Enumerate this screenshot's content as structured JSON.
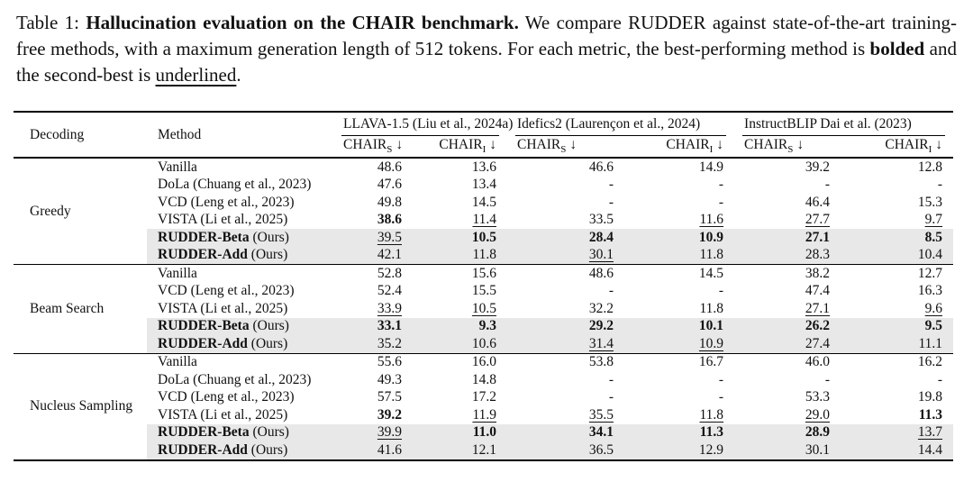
{
  "caption": {
    "label": "Table 1: ",
    "title": "Hallucination evaluation on the CHAIR benchmark.",
    "text_a": "  We compare RUDDER against state-of-the-art training-free methods, with a maximum generation length of 512 tokens. For each metric, the best-performing method is ",
    "bold_word": "bolded",
    "text_b": " and the second-best is ",
    "underline_word": "underlined",
    "text_c": "."
  },
  "table": {
    "highlight_color": "#e8e8e8",
    "header": {
      "decoding": "Decoding",
      "method": "Method",
      "groups": [
        "LLAVA-1.5 (Liu et al., 2024a)",
        "Idefics2 (Laurençon et al., 2024)",
        "InstructBLIP Dai et al. (2023)"
      ],
      "metric": "CHAIR",
      "sub_s": "S",
      "sub_i": "I",
      "arrow": "↓"
    },
    "sections": [
      {
        "decoding": "Greedy",
        "rows": [
          {
            "m": "Vanilla",
            "cells": [
              {
                "v": "48.6"
              },
              {
                "v": "13.6"
              },
              {
                "v": "46.6"
              },
              {
                "v": "14.9"
              },
              {
                "v": "39.2"
              },
              {
                "v": "12.8"
              }
            ]
          },
          {
            "m": "DoLa (Chuang et al., 2023)",
            "cells": [
              {
                "v": "47.6"
              },
              {
                "v": "13.4"
              },
              {
                "v": "-"
              },
              {
                "v": "-"
              },
              {
                "v": "-"
              },
              {
                "v": "-"
              }
            ]
          },
          {
            "m": "VCD (Leng et al., 2023)",
            "cells": [
              {
                "v": "49.8"
              },
              {
                "v": "14.5"
              },
              {
                "v": "-"
              },
              {
                "v": "-"
              },
              {
                "v": "46.4"
              },
              {
                "v": "15.3"
              }
            ]
          },
          {
            "m": "VISTA (Li et al., 2025)",
            "cells": [
              {
                "v": "38.6",
                "b": true
              },
              {
                "v": "11.4",
                "u": true
              },
              {
                "v": "33.5"
              },
              {
                "v": "11.6",
                "u": true
              },
              {
                "v": "27.7",
                "u": true
              },
              {
                "v": "9.7",
                "u": true
              }
            ]
          },
          {
            "mb": "RUDDER-Beta",
            "m": " (Ours)",
            "hl": true,
            "cells": [
              {
                "v": "39.5",
                "u": true
              },
              {
                "v": "10.5",
                "b": true
              },
              {
                "v": "28.4",
                "b": true
              },
              {
                "v": "10.9",
                "b": true
              },
              {
                "v": "27.1",
                "b": true
              },
              {
                "v": "8.5",
                "b": true
              }
            ]
          },
          {
            "mb": "RUDDER-Add",
            "m": " (Ours)",
            "hl": true,
            "cells": [
              {
                "v": "42.1"
              },
              {
                "v": "11.8"
              },
              {
                "v": "30.1",
                "u": true
              },
              {
                "v": "11.8"
              },
              {
                "v": "28.3"
              },
              {
                "v": "10.4"
              }
            ]
          }
        ]
      },
      {
        "decoding": "Beam Search",
        "rows": [
          {
            "m": "Vanilla",
            "cells": [
              {
                "v": "52.8"
              },
              {
                "v": "15.6"
              },
              {
                "v": "48.6"
              },
              {
                "v": "14.5"
              },
              {
                "v": "38.2"
              },
              {
                "v": "12.7"
              }
            ]
          },
          {
            "m": "VCD (Leng et al., 2023)",
            "cells": [
              {
                "v": "52.4"
              },
              {
                "v": "15.5"
              },
              {
                "v": "-"
              },
              {
                "v": "-"
              },
              {
                "v": "47.4"
              },
              {
                "v": "16.3"
              }
            ]
          },
          {
            "m": "VISTA (Li et al., 2025)",
            "cells": [
              {
                "v": "33.9",
                "u": true
              },
              {
                "v": "10.5",
                "u": true
              },
              {
                "v": "32.2"
              },
              {
                "v": "11.8"
              },
              {
                "v": "27.1",
                "u": true
              },
              {
                "v": "9.6",
                "u": true
              }
            ]
          },
          {
            "mb": "RUDDER-Beta",
            "m": " (Ours)",
            "hl": true,
            "cells": [
              {
                "v": "33.1",
                "b": true
              },
              {
                "v": "9.3",
                "b": true
              },
              {
                "v": "29.2",
                "b": true
              },
              {
                "v": "10.1",
                "b": true
              },
              {
                "v": "26.2",
                "b": true
              },
              {
                "v": "9.5",
                "b": true
              }
            ]
          },
          {
            "mb": "RUDDER-Add",
            "m": " (Ours)",
            "hl": true,
            "cells": [
              {
                "v": "35.2"
              },
              {
                "v": "10.6"
              },
              {
                "v": "31.4",
                "u": true
              },
              {
                "v": "10.9",
                "u": true
              },
              {
                "v": "27.4"
              },
              {
                "v": "11.1"
              }
            ]
          }
        ]
      },
      {
        "decoding": "Nucleus Sampling",
        "rows": [
          {
            "m": "Vanilla",
            "cells": [
              {
                "v": "55.6"
              },
              {
                "v": "16.0"
              },
              {
                "v": "53.8"
              },
              {
                "v": "16.7"
              },
              {
                "v": "46.0"
              },
              {
                "v": "16.2"
              }
            ]
          },
          {
            "m": "DoLa (Chuang et al., 2023)",
            "cells": [
              {
                "v": "49.3"
              },
              {
                "v": "14.8"
              },
              {
                "v": "-"
              },
              {
                "v": "-"
              },
              {
                "v": "-"
              },
              {
                "v": "-"
              }
            ]
          },
          {
            "m": "VCD (Leng et al., 2023)",
            "cells": [
              {
                "v": "57.5"
              },
              {
                "v": "17.2"
              },
              {
                "v": "-"
              },
              {
                "v": "-"
              },
              {
                "v": "53.3"
              },
              {
                "v": "19.8"
              }
            ]
          },
          {
            "m": "VISTA (Li et al., 2025)",
            "cells": [
              {
                "v": "39.2",
                "b": true
              },
              {
                "v": "11.9",
                "u": true
              },
              {
                "v": "35.5",
                "u": true
              },
              {
                "v": "11.8",
                "u": true
              },
              {
                "v": "29.0",
                "u": true
              },
              {
                "v": "11.3",
                "b": true
              }
            ]
          },
          {
            "mb": "RUDDER-Beta",
            "m": " (Ours)",
            "hl": true,
            "cells": [
              {
                "v": "39.9",
                "u": true
              },
              {
                "v": "11.0",
                "b": true
              },
              {
                "v": "34.1",
                "b": true
              },
              {
                "v": "11.3",
                "b": true
              },
              {
                "v": "28.9",
                "b": true
              },
              {
                "v": "13.7",
                "u": true
              }
            ]
          },
          {
            "mb": "RUDDER-Add",
            "m": " (Ours)",
            "hl": true,
            "cells": [
              {
                "v": "41.6"
              },
              {
                "v": "12.1"
              },
              {
                "v": "36.5"
              },
              {
                "v": "12.9"
              },
              {
                "v": "30.1"
              },
              {
                "v": "14.4"
              }
            ]
          }
        ]
      }
    ]
  }
}
